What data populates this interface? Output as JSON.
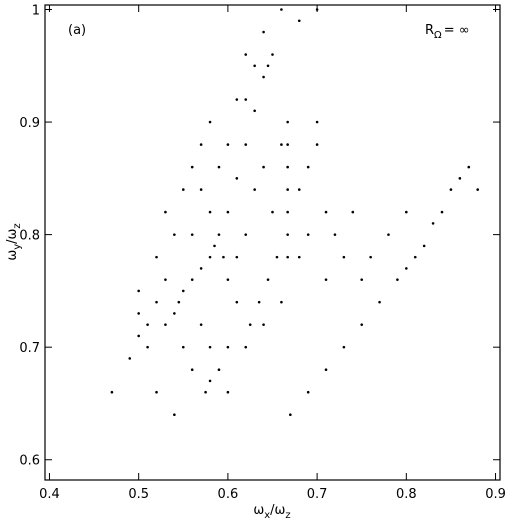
{
  "chart_data": {
    "type": "scatter",
    "annotation": "(a)",
    "legend_text": [
      "R",
      "Ω",
      "= ∞"
    ],
    "x_label": [
      "ω",
      "x",
      "/ω",
      "z"
    ],
    "y_label": [
      "ω",
      "y",
      "/ω",
      "z"
    ],
    "color": "#000000",
    "xlim": [
      0.395,
      0.905
    ],
    "xticks": [
      0.4,
      0.5,
      0.6,
      0.7,
      0.8,
      0.9
    ],
    "ylim": [
      0.582,
      1.004
    ],
    "yticks": [
      0.6,
      0.7,
      0.8,
      0.9,
      1
    ],
    "x": [
      0.5,
      0.5,
      0.5,
      0.51,
      0.52,
      0.53,
      0.54,
      0.545,
      0.55,
      0.56,
      0.57,
      0.58,
      0.585,
      0.59,
      0.56,
      0.57,
      0.58,
      0.595,
      0.6,
      0.61,
      0.6,
      0.61,
      0.62,
      0.63,
      0.64,
      0.65,
      0.645,
      0.667,
      0.667,
      0.667,
      0.667,
      0.667,
      0.667,
      0.667,
      0.625,
      0.635,
      0.645,
      0.655,
      0.52,
      0.53,
      0.54,
      0.55,
      0.56,
      0.57,
      0.58,
      0.59,
      0.6,
      0.61,
      0.62,
      0.63,
      0.64,
      0.65,
      0.66,
      0.68,
      0.69,
      0.7,
      0.7,
      0.71,
      0.72,
      0.73,
      0.74,
      0.62,
      0.63,
      0.64,
      0.66,
      0.68,
      0.7,
      0.55,
      0.56,
      0.575,
      0.58,
      0.53,
      0.51,
      0.49,
      0.47,
      0.52,
      0.54,
      0.6,
      0.62,
      0.64,
      0.66,
      0.68,
      0.69,
      0.71,
      0.6,
      0.59,
      0.58,
      0.61,
      0.62,
      0.57,
      0.67,
      0.69,
      0.71,
      0.73,
      0.75,
      0.77,
      0.79,
      0.8,
      0.81,
      0.82,
      0.83,
      0.84,
      0.85,
      0.86,
      0.87,
      0.76,
      0.78,
      0.8,
      0.75,
      0.88
    ],
    "values": [
      0.71,
      0.73,
      0.75,
      0.72,
      0.74,
      0.72,
      0.73,
      0.74,
      0.75,
      0.76,
      0.77,
      0.78,
      0.79,
      0.8,
      0.86,
      0.84,
      0.82,
      0.78,
      0.76,
      0.74,
      0.82,
      0.85,
      0.88,
      0.91,
      0.94,
      0.96,
      0.95,
      0.78,
      0.8,
      0.82,
      0.84,
      0.86,
      0.88,
      0.9,
      0.72,
      0.74,
      0.76,
      0.78,
      0.78,
      0.82,
      0.8,
      0.84,
      0.8,
      0.72,
      0.7,
      0.68,
      0.7,
      0.78,
      0.8,
      0.84,
      0.86,
      0.82,
      0.88,
      0.84,
      0.86,
      0.88,
      0.9,
      0.82,
      0.8,
      0.78,
      0.82,
      0.92,
      0.95,
      0.98,
      1.0,
      0.99,
      1.0,
      0.7,
      0.68,
      0.66,
      0.67,
      0.76,
      0.7,
      0.69,
      0.66,
      0.66,
      0.64,
      0.66,
      0.7,
      0.72,
      0.74,
      0.78,
      0.8,
      0.76,
      0.88,
      0.86,
      0.9,
      0.92,
      0.96,
      0.88,
      0.64,
      0.66,
      0.68,
      0.7,
      0.72,
      0.74,
      0.76,
      0.77,
      0.78,
      0.79,
      0.81,
      0.82,
      0.84,
      0.85,
      0.86,
      0.78,
      0.8,
      0.82,
      0.76,
      0.84
    ]
  }
}
